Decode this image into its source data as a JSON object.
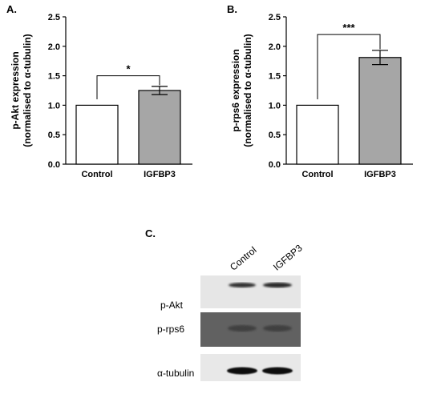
{
  "chart_data": [
    {
      "type": "bar",
      "panel_label": "A.",
      "ylabel_lines": [
        "p-Akt expression",
        "(normalised to α-tubulin)"
      ],
      "categories": [
        "Control",
        "IGFBP3"
      ],
      "values": [
        1.0,
        1.25
      ],
      "errors": [
        null,
        0.07
      ],
      "bar_colors": [
        "#ffffff",
        "#a6a6a6"
      ],
      "ylim": [
        0.0,
        2.5
      ],
      "yticks": [
        "0.0",
        "0.5",
        "1.0",
        "1.5",
        "2.0",
        "2.5"
      ],
      "significance": "*",
      "bracket_y": 1.5,
      "grid": false
    },
    {
      "type": "bar",
      "panel_label": "B.",
      "ylabel_lines": [
        "p-rps6 expression",
        "(normalised to α-tubulin)"
      ],
      "categories": [
        "Control",
        "IGFBP3"
      ],
      "values": [
        1.0,
        1.81
      ],
      "errors": [
        null,
        0.12
      ],
      "bar_colors": [
        "#ffffff",
        "#a6a6a6"
      ],
      "ylim": [
        0.0,
        2.5
      ],
      "yticks": [
        "0.0",
        "0.5",
        "1.0",
        "1.5",
        "2.0",
        "2.5"
      ],
      "significance": "***",
      "bracket_y": 2.2,
      "grid": false
    }
  ],
  "blot": {
    "panel_label": "C.",
    "lanes": [
      "Control",
      "IGFBP3"
    ],
    "rows": [
      "p-Akt",
      "p-rps6",
      "α-tubulin"
    ]
  }
}
